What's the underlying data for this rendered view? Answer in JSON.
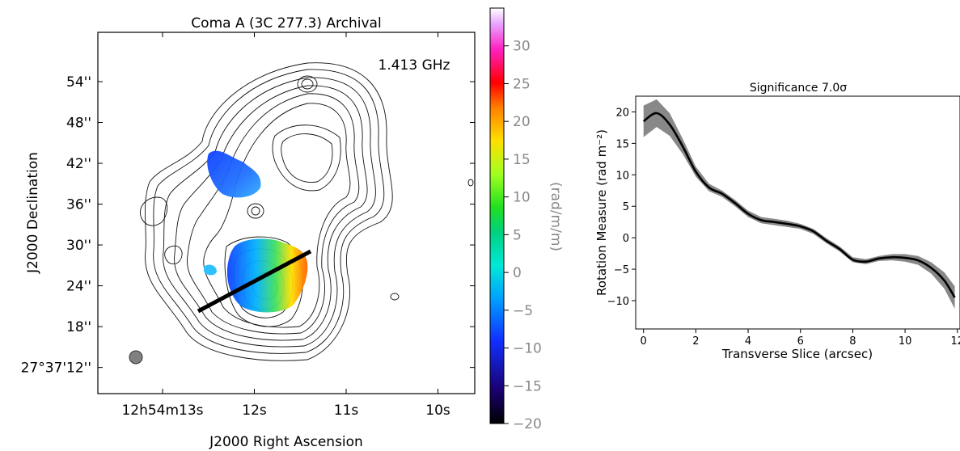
{
  "chart_data": [
    {
      "type": "heatmap",
      "title": "Coma A (3C 277.3) Archival",
      "annotation": "1.413 GHz",
      "xlabel": "J2000 Right Ascension",
      "ylabel": "J2000 Declination",
      "x_ticks": [
        {
          "label": "12h54m13s",
          "value": 13
        },
        {
          "label": "12s",
          "value": 12
        },
        {
          "label": "11s",
          "value": 11
        },
        {
          "label": "10s",
          "value": 10
        }
      ],
      "y_ticks": [
        {
          "label": "54''",
          "value": 54
        },
        {
          "label": "48''",
          "value": 48
        },
        {
          "label": "42''",
          "value": 42
        },
        {
          "label": "36''",
          "value": 36
        },
        {
          "label": "30''",
          "value": 30
        },
        {
          "label": "24''",
          "value": 24
        },
        {
          "label": "18''",
          "value": 18
        },
        {
          "label": "27°37'12''",
          "value": 12
        }
      ],
      "colorbar": {
        "label": "(rad/m/m)",
        "range": [
          -20,
          35
        ],
        "ticks": [
          30,
          25,
          20,
          15,
          10,
          5,
          0,
          -5,
          -10,
          -15,
          -20
        ],
        "colormap": "gist_ncar"
      },
      "slice_line": "black transverse slice across southern lobe"
    },
    {
      "type": "line",
      "title": "Significance  7.0σ",
      "xlabel": "Transverse Slice (arcsec)",
      "ylabel": "Rotation Measure (rad m⁻²)",
      "xlim": [
        -0.3,
        12.1
      ],
      "ylim": [
        -14.5,
        22.5
      ],
      "x_ticks": [
        0,
        2,
        4,
        6,
        8,
        10,
        12
      ],
      "y_ticks": [
        20,
        15,
        10,
        5,
        0,
        -5,
        -10
      ],
      "x": [
        0,
        0.5,
        1.0,
        1.5,
        2.0,
        2.5,
        3.0,
        3.5,
        4.0,
        4.5,
        5.0,
        5.5,
        6.0,
        6.5,
        7.0,
        7.5,
        8.0,
        8.5,
        9.0,
        9.5,
        10.0,
        10.5,
        11.0,
        11.5,
        11.9
      ],
      "values": [
        18.5,
        19.8,
        18.0,
        14.5,
        10.5,
        8.0,
        7.0,
        5.5,
        3.8,
        2.8,
        2.5,
        2.2,
        1.8,
        1.0,
        -0.5,
        -1.8,
        -3.5,
        -3.8,
        -3.3,
        -3.1,
        -3.2,
        -3.6,
        -4.8,
        -6.8,
        -9.5
      ],
      "error": [
        2.5,
        2.2,
        1.8,
        1.2,
        0.8,
        0.6,
        0.5,
        0.5,
        0.5,
        0.5,
        0.5,
        0.5,
        0.4,
        0.4,
        0.4,
        0.4,
        0.4,
        0.4,
        0.4,
        0.5,
        0.6,
        0.7,
        0.9,
        1.3,
        1.8
      ]
    }
  ]
}
